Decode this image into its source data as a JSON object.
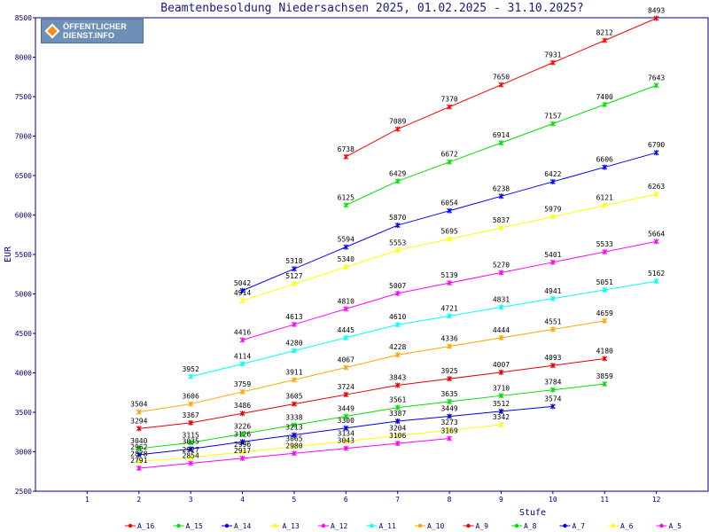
{
  "header": {
    "logo_line1": "ÖFFENTLICHER",
    "logo_line2": "DIENST.INFO"
  },
  "chart_data": {
    "type": "line",
    "title": "Beamtenbesoldung Niedersachsen 2025, 01.02.2025 - 31.10.2025?",
    "xlabel": "Stufe",
    "ylabel": "EUR",
    "x": [
      1,
      2,
      3,
      4,
      5,
      6,
      7,
      8,
      9,
      10,
      11,
      12
    ],
    "xlim": [
      0,
      13
    ],
    "ylim": [
      2500,
      8500
    ],
    "yticks": [
      2500,
      3000,
      3500,
      4000,
      4500,
      5000,
      5500,
      6000,
      6500,
      7000,
      7500,
      8000,
      8500
    ],
    "grid": false,
    "legend_position": "bottom",
    "series": [
      {
        "name": "A_16",
        "color": "#ff0000",
        "points": [
          [
            6,
            6738
          ],
          [
            7,
            7089
          ],
          [
            8,
            7370
          ],
          [
            9,
            7650
          ],
          [
            10,
            7931
          ],
          [
            11,
            8212
          ],
          [
            12,
            8493
          ]
        ]
      },
      {
        "name": "A_15",
        "color": "#00e000",
        "points": [
          [
            6,
            6125
          ],
          [
            7,
            6429
          ],
          [
            8,
            6672
          ],
          [
            9,
            6914
          ],
          [
            10,
            7157
          ],
          [
            11,
            7400
          ],
          [
            12,
            7643
          ]
        ]
      },
      {
        "name": "A_14",
        "color": "#0000ff",
        "points": [
          [
            4,
            5042
          ],
          [
            5,
            5318
          ],
          [
            6,
            5594
          ],
          [
            7,
            5870
          ],
          [
            8,
            6054
          ],
          [
            9,
            6238
          ],
          [
            10,
            6422
          ],
          [
            11,
            6606
          ],
          [
            12,
            6790
          ]
        ]
      },
      {
        "name": "A_13",
        "color": "#ffff00",
        "points": [
          [
            4,
            4914
          ],
          [
            5,
            5127
          ],
          [
            6,
            5340
          ],
          [
            7,
            5553
          ],
          [
            8,
            5695
          ],
          [
            9,
            5837
          ],
          [
            10,
            5979
          ],
          [
            11,
            6121
          ],
          [
            12,
            6263
          ]
        ]
      },
      {
        "name": "A_12",
        "color": "#ff00ff",
        "points": [
          [
            4,
            4416
          ],
          [
            5,
            4613
          ],
          [
            6,
            4810
          ],
          [
            7,
            5007
          ],
          [
            8,
            5139
          ],
          [
            9,
            5270
          ],
          [
            10,
            5401
          ],
          [
            11,
            5533
          ],
          [
            12,
            5664
          ]
        ]
      },
      {
        "name": "A_11",
        "color": "#00ffff",
        "points": [
          [
            3,
            3952
          ],
          [
            4,
            4114
          ],
          [
            5,
            4280
          ],
          [
            6,
            4445
          ],
          [
            7,
            4610
          ],
          [
            8,
            4721
          ],
          [
            9,
            4831
          ],
          [
            10,
            4941
          ],
          [
            11,
            5051
          ],
          [
            12,
            5162
          ]
        ]
      },
      {
        "name": "A_10",
        "color": "#ffa500",
        "points": [
          [
            2,
            3504
          ],
          [
            3,
            3606
          ],
          [
            4,
            3759
          ],
          [
            5,
            3911
          ],
          [
            6,
            4067
          ],
          [
            7,
            4228
          ],
          [
            8,
            4336
          ],
          [
            9,
            4444
          ],
          [
            10,
            4551
          ],
          [
            11,
            4659
          ]
        ]
      },
      {
        "name": "A_9",
        "color": "#e00000",
        "points": [
          [
            2,
            3294
          ],
          [
            3,
            3367
          ],
          [
            4,
            3486
          ],
          [
            5,
            3605
          ],
          [
            6,
            3724
          ],
          [
            7,
            3843
          ],
          [
            8,
            3925
          ],
          [
            9,
            4007
          ],
          [
            10,
            4093
          ],
          [
            11,
            4180
          ]
        ]
      },
      {
        "name": "A_8",
        "color": "#00e000",
        "points": [
          [
            2,
            3040
          ],
          [
            3,
            3115
          ],
          [
            4,
            3226
          ],
          [
            5,
            3338
          ],
          [
            6,
            3449
          ],
          [
            7,
            3561
          ],
          [
            8,
            3635
          ],
          [
            9,
            3710
          ],
          [
            10,
            3784
          ],
          [
            11,
            3859
          ]
        ]
      },
      {
        "name": "A_7",
        "color": "#0000e0",
        "points": [
          [
            2,
            2962
          ],
          [
            3,
            3035
          ],
          [
            4,
            3126
          ],
          [
            5,
            3213
          ],
          [
            6,
            3300
          ],
          [
            7,
            3387
          ],
          [
            8,
            3449
          ],
          [
            9,
            3512
          ],
          [
            10,
            3574
          ]
        ]
      },
      {
        "name": "A_6",
        "color": "#ffff00",
        "points": [
          [
            2,
            2878
          ],
          [
            3,
            2927
          ],
          [
            4,
            2996
          ],
          [
            5,
            3065
          ],
          [
            6,
            3134
          ],
          [
            7,
            3204
          ],
          [
            8,
            3273
          ],
          [
            9,
            3342
          ]
        ]
      },
      {
        "name": "A_5",
        "color": "#ff00ff",
        "points": [
          [
            2,
            2791
          ],
          [
            3,
            2854
          ],
          [
            4,
            2917
          ],
          [
            5,
            2980
          ],
          [
            6,
            3043
          ],
          [
            7,
            3106
          ],
          [
            8,
            3169
          ]
        ]
      }
    ]
  }
}
